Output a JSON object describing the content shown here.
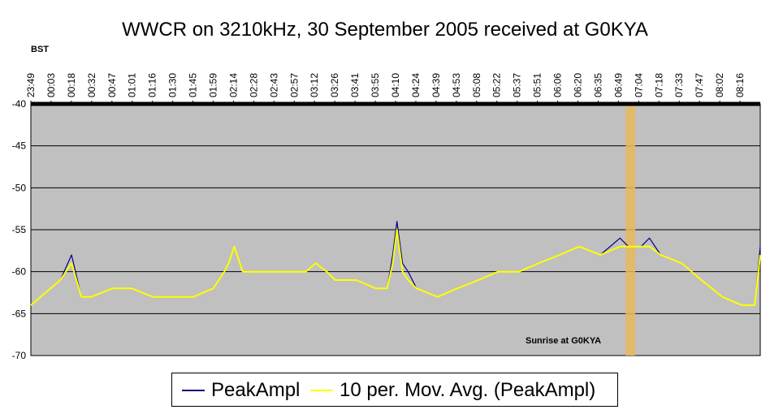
{
  "chart_data": {
    "type": "line",
    "title": "WWCR on 3210kHz, 30 September 2005 received at G0KYA",
    "xlabel": "BST",
    "ylabel": "",
    "ylim": [
      -70,
      -40
    ],
    "yticks": [
      -40,
      -45,
      -50,
      -55,
      -60,
      -65,
      -70
    ],
    "grid": true,
    "legend": "bottom",
    "x_ticks": [
      "23:49",
      "00:03",
      "00:18",
      "00:32",
      "00:47",
      "01:01",
      "01:16",
      "01:30",
      "01:45",
      "01:59",
      "02:14",
      "02:28",
      "02:43",
      "02:57",
      "03:12",
      "03:26",
      "03:41",
      "03:55",
      "04:10",
      "04:24",
      "04:39",
      "04:53",
      "05:08",
      "05:22",
      "05:37",
      "05:51",
      "06:06",
      "06:20",
      "06:35",
      "06:49",
      "07:04",
      "07:18",
      "07:33",
      "07:47",
      "08:02",
      "08:16"
    ],
    "annotation": "Sunrise at G0KYA",
    "sunrise_band": [
      "06:53",
      "06:57"
    ],
    "series": [
      {
        "name": "PeakAmpl",
        "color": "#000080",
        "x": [
          "23:49",
          "00:03",
          "00:10",
          "00:18",
          "00:25",
          "00:32",
          "00:47",
          "01:01",
          "01:16",
          "01:30",
          "01:45",
          "01:59",
          "02:07",
          "02:10",
          "02:14",
          "02:20",
          "02:28",
          "02:43",
          "02:57",
          "03:05",
          "03:12",
          "03:20",
          "03:26",
          "03:41",
          "03:55",
          "04:03",
          "04:07",
          "04:10",
          "04:14",
          "04:18",
          "04:24",
          "04:39",
          "04:53",
          "05:08",
          "05:22",
          "05:37",
          "05:51",
          "06:06",
          "06:20",
          "06:35",
          "06:49",
          "06:55",
          "07:04",
          "07:10",
          "07:18",
          "07:33",
          "07:47",
          "08:02",
          "08:16",
          "08:25",
          "08:29"
        ],
        "values": [
          -64,
          -62,
          -61,
          -58,
          -63,
          -63,
          -62,
          -62,
          -63,
          -63,
          -63,
          -62,
          -60,
          -59,
          -57,
          -60,
          -60,
          -60,
          -60,
          -60,
          -59,
          -60,
          -61,
          -61,
          -62,
          -62,
          -58,
          -54,
          -59,
          -60,
          -62,
          -63,
          -62,
          -61,
          -60,
          -60,
          -59,
          -58,
          -57,
          -58,
          -56,
          -57,
          -57,
          -56,
          -58,
          -59,
          -61,
          -63,
          -64,
          -64,
          -57
        ]
      },
      {
        "name": "10 per. Mov. Avg. (PeakAmpl)",
        "color": "#ffff00",
        "x": [
          "23:49",
          "00:03",
          "00:10",
          "00:18",
          "00:25",
          "00:32",
          "00:47",
          "01:01",
          "01:16",
          "01:30",
          "01:45",
          "01:59",
          "02:07",
          "02:10",
          "02:14",
          "02:20",
          "02:28",
          "02:43",
          "02:57",
          "03:05",
          "03:12",
          "03:20",
          "03:26",
          "03:41",
          "03:55",
          "04:03",
          "04:07",
          "04:10",
          "04:14",
          "04:18",
          "04:24",
          "04:39",
          "04:53",
          "05:08",
          "05:22",
          "05:37",
          "05:51",
          "06:06",
          "06:20",
          "06:35",
          "06:49",
          "06:55",
          "07:04",
          "07:10",
          "07:18",
          "07:33",
          "07:47",
          "08:02",
          "08:16",
          "08:25",
          "08:29"
        ],
        "values": [
          -64,
          -62,
          -61,
          -59,
          -63,
          -63,
          -62,
          -62,
          -63,
          -63,
          -63,
          -62,
          -60,
          -59,
          -57,
          -60,
          -60,
          -60,
          -60,
          -60,
          -59,
          -60,
          -61,
          -61,
          -62,
          -62,
          -59,
          -55,
          -60,
          -61,
          -62,
          -63,
          -62,
          -61,
          -60,
          -60,
          -59,
          -58,
          -57,
          -58,
          -57,
          -57,
          -57,
          -57,
          -58,
          -59,
          -61,
          -63,
          -64,
          -64,
          -58
        ]
      }
    ]
  }
}
